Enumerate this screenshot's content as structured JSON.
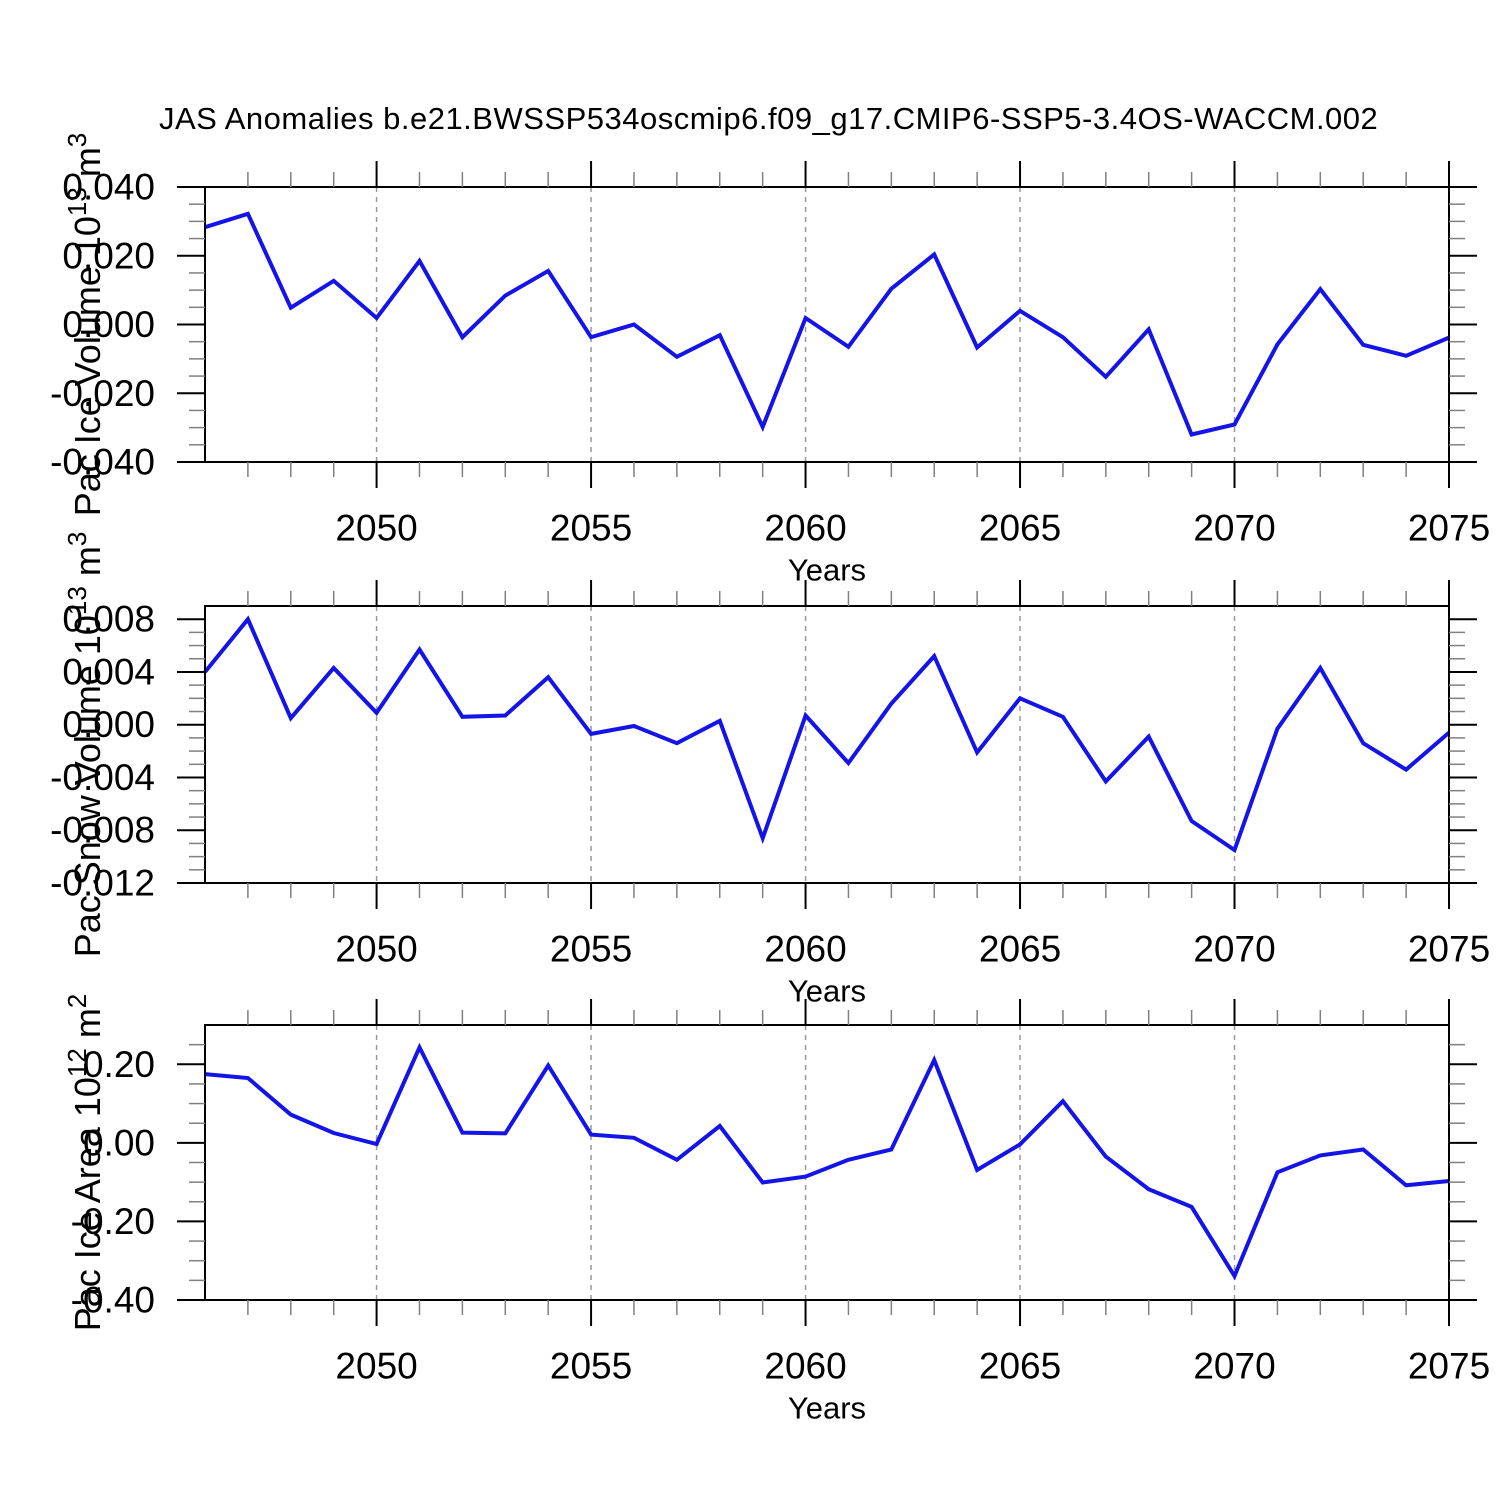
{
  "title": "JAS Anomalies b.e21.BWSSP534oscmip6.f09_g17.CMIP6-SSP5-3.4OS-WACCM.002",
  "colors": {
    "line": "#1414e8",
    "grid": "#999999",
    "axis": "#000000",
    "minor_tick": "#808080",
    "text": "#000000",
    "background": "#ffffff"
  },
  "chart_data": [
    {
      "name": "pac-ice-volume",
      "type": "line",
      "xlabel": "Years",
      "ylabel_parts": [
        {
          "t": "Pac Ice Volume 10"
        },
        {
          "t": "13",
          "sup": true
        },
        {
          "t": " m"
        },
        {
          "t": "3",
          "sup": true
        }
      ],
      "x": [
        2046,
        2047,
        2048,
        2049,
        2050,
        2051,
        2052,
        2053,
        2054,
        2055,
        2056,
        2057,
        2058,
        2059,
        2060,
        2061,
        2062,
        2063,
        2064,
        2065,
        2066,
        2067,
        2068,
        2069,
        2070,
        2071,
        2072,
        2073,
        2074,
        2075
      ],
      "values": [
        0.0283,
        0.0322,
        0.0049,
        0.0127,
        0.0019,
        0.0185,
        -0.0037,
        0.0084,
        0.0156,
        -0.0037,
        0.0,
        -0.0094,
        -0.0031,
        -0.0298,
        0.0019,
        -0.0065,
        0.0104,
        0.0204,
        -0.0067,
        0.004,
        -0.0037,
        -0.0152,
        -0.0014,
        -0.032,
        -0.0291,
        -0.0058,
        0.0103,
        -0.0059,
        -0.0091,
        -0.0038
      ],
      "xlim": [
        2046,
        2075
      ],
      "ylim": [
        -0.04,
        0.04
      ],
      "xticks_major": [
        2050,
        2055,
        2060,
        2065,
        2070,
        2075
      ],
      "xtick_labels": [
        "2050",
        "2055",
        "2060",
        "2065",
        "2070",
        "2075"
      ],
      "xtick_minor_step": 1,
      "yticks_major": [
        0.04,
        0.02,
        0,
        -0.02,
        -0.04
      ],
      "ytick_labels": [
        "0.040",
        "0.020",
        "0.000",
        "-0.020",
        "-0.040"
      ],
      "ytick_minor_step": 0.005,
      "gridlines_x": [
        2050,
        2055,
        2060,
        2065,
        2070
      ],
      "grid": "vertical-dashed",
      "legend": "none"
    },
    {
      "name": "pac-snow-volume",
      "type": "line",
      "xlabel": "Years",
      "ylabel_parts": [
        {
          "t": "Pac Snow Volume 10"
        },
        {
          "t": "13",
          "sup": true
        },
        {
          "t": " m"
        },
        {
          "t": "3",
          "sup": true
        }
      ],
      "x": [
        2046,
        2047,
        2048,
        2049,
        2050,
        2051,
        2052,
        2053,
        2054,
        2055,
        2056,
        2057,
        2058,
        2059,
        2060,
        2061,
        2062,
        2063,
        2064,
        2065,
        2066,
        2067,
        2068,
        2069,
        2070,
        2071,
        2072,
        2073,
        2074,
        2075
      ],
      "values": [
        0.004,
        0.008,
        0.0005,
        0.0043,
        0.0009,
        0.0057,
        0.0006,
        0.0007,
        0.0036,
        -0.0007,
        -0.0001,
        -0.0014,
        0.0003,
        -0.0086,
        0.0007,
        -0.0029,
        0.0016,
        0.0052,
        -0.0021,
        0.002,
        0.0006,
        -0.0043,
        -0.0009,
        -0.0073,
        -0.0095,
        -0.0003,
        0.0043,
        -0.0014,
        -0.0034,
        -0.0006
      ],
      "xlim": [
        2046,
        2075
      ],
      "ylim": [
        -0.012,
        0.009
      ],
      "xticks_major": [
        2050,
        2055,
        2060,
        2065,
        2070,
        2075
      ],
      "xtick_labels": [
        "2050",
        "2055",
        "2060",
        "2065",
        "2070",
        "2075"
      ],
      "xtick_minor_step": 1,
      "yticks_major": [
        0.008,
        0.004,
        0,
        -0.004,
        -0.008,
        -0.012
      ],
      "ytick_labels": [
        "0.008",
        "0.004",
        "0.000",
        "-0.004",
        "-0.008",
        "-0.012"
      ],
      "ytick_minor_step": 0.001,
      "gridlines_x": [
        2050,
        2055,
        2060,
        2065,
        2070
      ],
      "grid": "vertical-dashed",
      "legend": "none"
    },
    {
      "name": "pac-ice-area",
      "type": "line",
      "xlabel": "Years",
      "ylabel_parts": [
        {
          "t": "Pac Ice Area 10"
        },
        {
          "t": "12",
          "sup": true
        },
        {
          "t": " m"
        },
        {
          "t": "2",
          "sup": true
        }
      ],
      "x": [
        2046,
        2047,
        2048,
        2049,
        2050,
        2051,
        2052,
        2053,
        2054,
        2055,
        2056,
        2057,
        2058,
        2059,
        2060,
        2061,
        2062,
        2063,
        2064,
        2065,
        2066,
        2067,
        2068,
        2069,
        2070,
        2071,
        2072,
        2073,
        2074,
        2075
      ],
      "values": [
        0.175,
        0.165,
        0.072,
        0.025,
        -0.003,
        0.243,
        0.026,
        0.024,
        0.197,
        0.021,
        0.013,
        -0.043,
        0.043,
        -0.101,
        -0.086,
        -0.043,
        -0.017,
        0.211,
        -0.069,
        -0.004,
        0.106,
        -0.035,
        -0.118,
        -0.163,
        -0.339,
        -0.075,
        -0.032,
        -0.017,
        -0.108,
        -0.097
      ],
      "xlim": [
        2046,
        2075
      ],
      "ylim": [
        -0.4,
        0.3
      ],
      "xticks_major": [
        2050,
        2055,
        2060,
        2065,
        2070,
        2075
      ],
      "xtick_labels": [
        "2050",
        "2055",
        "2060",
        "2065",
        "2070",
        "2075"
      ],
      "xtick_minor_step": 1,
      "yticks_major": [
        0.2,
        0.0,
        -0.2,
        -0.4
      ],
      "ytick_labels": [
        "0.20",
        "0.00",
        "-0.20",
        "-0.40"
      ],
      "ytick_minor_step": 0.05,
      "gridlines_x": [
        2050,
        2055,
        2060,
        2065,
        2070
      ],
      "grid": "vertical-dashed",
      "legend": "none"
    }
  ]
}
